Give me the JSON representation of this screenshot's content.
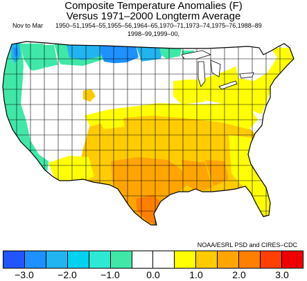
{
  "title": {
    "line1": "Composite Temperature Anomalies (F)",
    "line2": "Versus 1971–2000 Longterm Average"
  },
  "season": "Nov to Mar",
  "years": {
    "line1": "1950–51,1954–55,1955–56,1964–65,1970–71,1973–74,1975–76,1988–89",
    "line2": "1998–99,1999–00,"
  },
  "credit": "NOAA/ESRL PSD and CIRES–CDC",
  "colorbar": {
    "colors": [
      "#2255ff",
      "#1e90ff",
      "#22b4f0",
      "#00d2f0",
      "#2ee8d4",
      "#40e8a8",
      "#ffffff",
      "#ffffff",
      "#ffff00",
      "#ffcc00",
      "#ffa500",
      "#ff7f00",
      "#ff4000",
      "#ee0000"
    ],
    "labels": [
      "−3.0",
      "−2.0",
      "−1.0",
      "0.0",
      "1.0",
      "2.0",
      "3.0"
    ]
  },
  "anomaly_colors": {
    "minus_1_5": "#1e90ff",
    "minus_1_0": "#22b4f0",
    "minus_0_5": "#40e8a8",
    "near_zero": "#ffffff",
    "plus_0_5": "#ffff00",
    "plus_1_0": "#ffcc00",
    "plus_1_5": "#ffa500",
    "plus_2_0": "#ff7f00"
  }
}
